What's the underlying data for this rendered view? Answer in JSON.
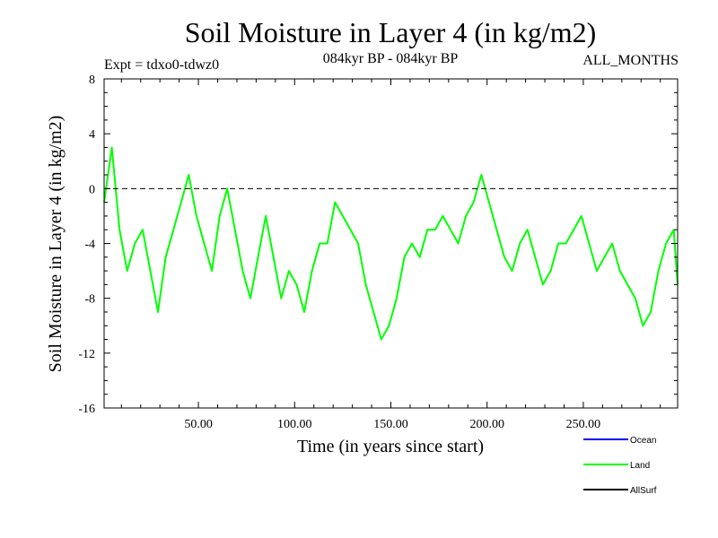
{
  "chart_data": {
    "type": "line",
    "title": "Soil Moisture in Layer 4 (in kg/m2)",
    "subtitle_left": "Expt = tdxo0-tdwz0",
    "subtitle_center": "084kyr BP - 084kyr BP",
    "subtitle_right": "ALL_MONTHS",
    "xlabel": "Time (in years since start)",
    "ylabel": "Soil Moisture in Layer 4 (in kg/m2)",
    "xlim": [
      1,
      299
    ],
    "ylim": [
      -16,
      8
    ],
    "x_ticks": [
      50,
      100,
      150,
      200,
      250
    ],
    "x_tick_labels": [
      "50.00",
      "100.00",
      "150.00",
      "200.00",
      "250.00"
    ],
    "y_ticks": [
      -16,
      -12,
      -8,
      -4,
      0,
      4,
      8
    ],
    "y_tick_labels": [
      "-16",
      "-12",
      "-8",
      "-4",
      "0",
      "4",
      "8"
    ],
    "reference_line": 0,
    "series": [
      {
        "name": "Ocean",
        "color": "#0000ff",
        "values": []
      },
      {
        "name": "Land",
        "color": "#00ff00",
        "x": [
          1,
          5,
          9,
          13,
          17,
          21,
          25,
          29,
          33,
          37,
          41,
          45,
          49,
          53,
          57,
          61,
          65,
          69,
          73,
          77,
          81,
          85,
          89,
          93,
          97,
          101,
          105,
          109,
          113,
          117,
          121,
          125,
          129,
          133,
          137,
          141,
          145,
          149,
          153,
          157,
          161,
          165,
          169,
          173,
          177,
          181,
          185,
          189,
          193,
          197,
          201,
          205,
          209,
          213,
          217,
          221,
          225,
          229,
          233,
          237,
          241,
          245,
          249,
          253,
          257,
          261,
          265,
          269,
          273,
          277,
          281,
          285,
          289,
          293,
          297,
          299
        ],
        "values": [
          -1,
          3,
          -3,
          -6,
          -4,
          -3,
          -6,
          -9,
          -5,
          -3,
          -1,
          1,
          -2,
          -4,
          -6,
          -2,
          0,
          -3,
          -6,
          -8,
          -5,
          -2,
          -5,
          -8,
          -6,
          -7,
          -9,
          -6,
          -4,
          -4,
          -1,
          -2,
          -3,
          -4,
          -7,
          -9,
          -11,
          -10,
          -8,
          -5,
          -4,
          -5,
          -3,
          -3,
          -2,
          -3,
          -4,
          -2,
          -1,
          1,
          -1,
          -3,
          -5,
          -6,
          -4,
          -3,
          -5,
          -7,
          -6,
          -4,
          -4,
          -3,
          -2,
          -4,
          -6,
          -5,
          -4,
          -6,
          -7,
          -8,
          -10,
          -9,
          -6,
          -4,
          -3,
          -7
        ]
      },
      {
        "name": "AllSurf",
        "color": "#000000",
        "values": []
      }
    ],
    "legend_placement": "bottom-right",
    "grid": false
  }
}
